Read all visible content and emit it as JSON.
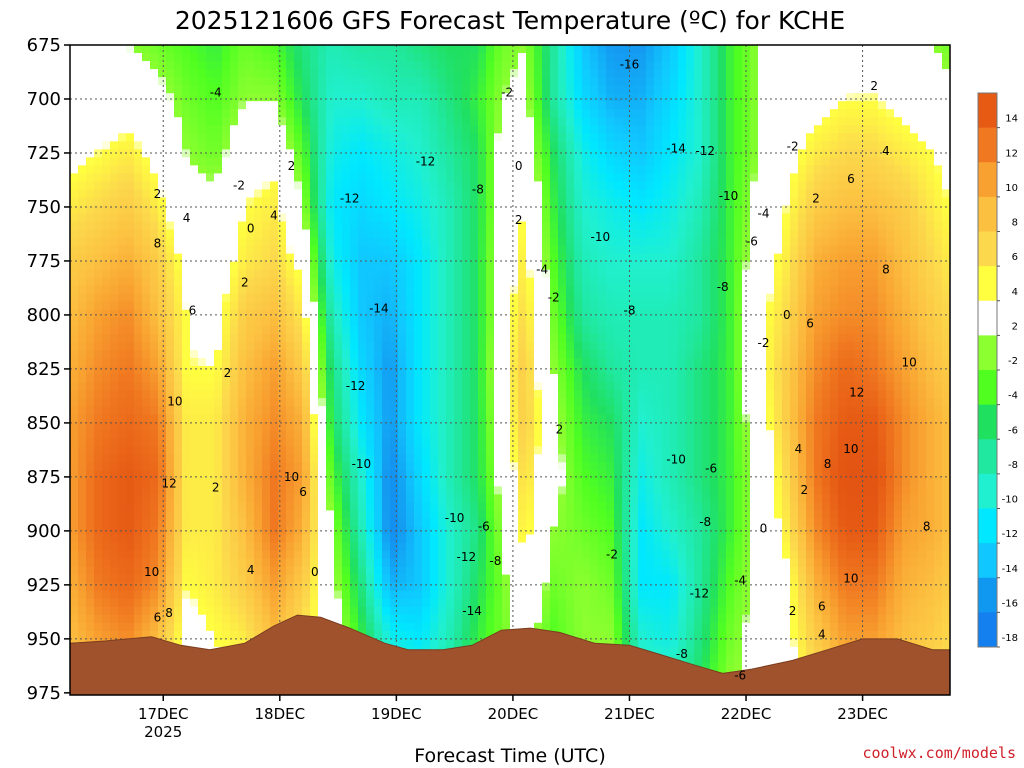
{
  "chart_data": {
    "type": "heatmap",
    "title": "2025121606 GFS Forecast Temperature (ºC) for KCHE",
    "xlabel": "Forecast Time (UTC)",
    "ylabel": "",
    "credit": "coolwx.com/models",
    "x_ticks": [
      {
        "label": "17DEC",
        "sub": "2025",
        "day": 17
      },
      {
        "label": "18DEC",
        "sub": "",
        "day": 18
      },
      {
        "label": "19DEC",
        "sub": "",
        "day": 19
      },
      {
        "label": "20DEC",
        "sub": "",
        "day": 20
      },
      {
        "label": "21DEC",
        "sub": "",
        "day": 21
      },
      {
        "label": "22DEC",
        "sub": "",
        "day": 22
      },
      {
        "label": "23DEC",
        "sub": "",
        "day": 23
      }
    ],
    "xlim": [
      16.2,
      23.75
    ],
    "y_ticks": [
      "675",
      "700",
      "725",
      "750",
      "775",
      "800",
      "825",
      "850",
      "875",
      "900",
      "925",
      "950",
      "975"
    ],
    "ylim": [
      675,
      976
    ],
    "grid": true,
    "legend": {
      "placement": "right",
      "labels": [
        "14",
        "12",
        "10",
        "8",
        "6",
        "4",
        "2",
        "-2",
        "-4",
        "-6",
        "-8",
        "-10",
        "-12",
        "-14",
        "-16",
        "-18"
      ],
      "colors": [
        "#e65a14",
        "#f07820",
        "#f8a030",
        "#fcc040",
        "#fcd84c",
        "#ffff40",
        "#ffffff",
        "#8cff30",
        "#50ff20",
        "#20e060",
        "#20e8a0",
        "#20f0d0",
        "#00e8ff",
        "#10c8ff",
        "#1098f0",
        "#1480f0"
      ]
    },
    "time_columns": [
      {
        "day": 16.2,
        "temps": [
          -2,
          0,
          1,
          3,
          5,
          6,
          7,
          8,
          8,
          8,
          7,
          6,
          4
        ]
      },
      {
        "day": 16.45,
        "temps": [
          -2,
          0,
          2,
          4,
          6,
          8,
          9,
          10,
          11,
          11,
          10,
          8,
          6
        ]
      },
      {
        "day": 16.7,
        "temps": [
          -2,
          0,
          3,
          5,
          7,
          9,
          10,
          11,
          12,
          12,
          11,
          9,
          6
        ]
      },
      {
        "day": 16.95,
        "temps": [
          -3,
          -1,
          1,
          3,
          5,
          6,
          8,
          10,
          11,
          10,
          9,
          6,
          3
        ]
      },
      {
        "day": 17.2,
        "temps": [
          -4,
          -3,
          -2,
          -1,
          1,
          2,
          2,
          3,
          3,
          3,
          2,
          1,
          0
        ]
      },
      {
        "day": 17.45,
        "temps": [
          -5,
          -4,
          -3,
          -1,
          0,
          1,
          2,
          3,
          3,
          3,
          3,
          2,
          1
        ]
      },
      {
        "day": 17.7,
        "temps": [
          -3,
          -2,
          0,
          2,
          3,
          5,
          6,
          7,
          7,
          6,
          5,
          3,
          2
        ]
      },
      {
        "day": 17.95,
        "temps": [
          -4,
          -2,
          1,
          3,
          4,
          6,
          8,
          9,
          10,
          10,
          8,
          6,
          3
        ]
      },
      {
        "day": 18.2,
        "temps": [
          -7,
          -6,
          -4,
          -2,
          1,
          3,
          5,
          7,
          8,
          7,
          5,
          3,
          1
        ]
      },
      {
        "day": 18.45,
        "temps": [
          -9,
          -10,
          -11,
          -12,
          -11,
          -9,
          -7,
          -6,
          -4,
          -2,
          -1,
          0,
          0
        ]
      },
      {
        "day": 18.7,
        "temps": [
          -8,
          -10,
          -12,
          -13,
          -14,
          -14,
          -13,
          -12,
          -10,
          -9,
          -7,
          -5,
          -3
        ]
      },
      {
        "day": 18.95,
        "temps": [
          -8,
          -9,
          -11,
          -12,
          -14,
          -15,
          -16,
          -16,
          -17,
          -17,
          -15,
          -11,
          -7
        ]
      },
      {
        "day": 19.2,
        "temps": [
          -7,
          -9,
          -10,
          -11,
          -12,
          -12,
          -12,
          -12,
          -13,
          -14,
          -14,
          -12,
          -9
        ]
      },
      {
        "day": 19.45,
        "temps": [
          -6,
          -7,
          -8,
          -9,
          -9,
          -9,
          -9,
          -9,
          -9,
          -10,
          -10,
          -9,
          -7
        ]
      },
      {
        "day": 19.7,
        "temps": [
          -6,
          -5,
          -6,
          -6,
          -6,
          -6,
          -6,
          -6,
          -6,
          -7,
          -6,
          -5,
          -4
        ]
      },
      {
        "day": 19.9,
        "temps": [
          -3,
          -2,
          -1,
          -1,
          0,
          0,
          1,
          0,
          -1,
          -2,
          -3,
          -3,
          -3
        ]
      },
      {
        "day": 20.1,
        "temps": [
          -2,
          -1,
          0,
          2,
          3,
          4,
          5,
          5,
          4,
          3,
          1,
          -1,
          -2
        ]
      },
      {
        "day": 20.35,
        "temps": [
          -8,
          -8,
          -6,
          -5,
          -4,
          -3,
          -2,
          -1,
          -1,
          -2,
          -3,
          -4,
          -4
        ]
      },
      {
        "day": 20.6,
        "temps": [
          -14,
          -13,
          -11,
          -10,
          -9,
          -8,
          -6,
          -5,
          -4,
          -3,
          -2,
          -2,
          -2
        ]
      },
      {
        "day": 20.85,
        "temps": [
          -16,
          -15,
          -13,
          -11,
          -10,
          -9,
          -8,
          -6,
          -5,
          -4,
          -3,
          -2,
          -2
        ]
      },
      {
        "day": 21.1,
        "temps": [
          -16,
          -15,
          -14,
          -12,
          -10,
          -9,
          -9,
          -10,
          -11,
          -12,
          -12,
          -10,
          -9
        ]
      },
      {
        "day": 21.35,
        "temps": [
          -14,
          -13,
          -12,
          -11,
          -10,
          -9,
          -9,
          -9,
          -9,
          -10,
          -12,
          -11,
          -8
        ]
      },
      {
        "day": 21.6,
        "temps": [
          -10,
          -10,
          -10,
          -9,
          -8,
          -8,
          -7,
          -7,
          -7,
          -8,
          -8,
          -7,
          -6
        ]
      },
      {
        "day": 21.85,
        "temps": [
          -5,
          -5,
          -5,
          -5,
          -5,
          -5,
          -5,
          -5,
          -5,
          -5,
          -4,
          -3,
          -2
        ]
      },
      {
        "day": 22.1,
        "temps": [
          -2,
          -2,
          -2,
          -1,
          0,
          1,
          1,
          0,
          -1,
          -1,
          -1,
          -1,
          -1
        ]
      },
      {
        "day": 22.35,
        "temps": [
          -1,
          0,
          1,
          2,
          3,
          4,
          5,
          5,
          4,
          3,
          1,
          1,
          1
        ]
      },
      {
        "day": 22.6,
        "temps": [
          0,
          1,
          3,
          5,
          7,
          8,
          9,
          10,
          10,
          9,
          7,
          5,
          3
        ]
      },
      {
        "day": 22.85,
        "temps": [
          0,
          2,
          4,
          6,
          8,
          9,
          11,
          12,
          13,
          12,
          10,
          8,
          5
        ]
      },
      {
        "day": 23.1,
        "temps": [
          1,
          2,
          4,
          6,
          8,
          9,
          10,
          12,
          13,
          12,
          10,
          8,
          5
        ]
      },
      {
        "day": 23.35,
        "temps": [
          0,
          1,
          3,
          5,
          6,
          7,
          8,
          9,
          9,
          8,
          7,
          6,
          4
        ]
      },
      {
        "day": 23.6,
        "temps": [
          -2,
          0,
          2,
          3,
          4,
          5,
          6,
          7,
          7,
          7,
          6,
          5,
          3
        ]
      },
      {
        "day": 23.75,
        "temps": [
          -3,
          -1,
          1,
          2,
          3,
          4,
          5,
          6,
          6,
          6,
          5,
          4,
          3
        ]
      }
    ],
    "terrain": {
      "description": "ground pressure (hPa)",
      "points": [
        {
          "day": 16.2,
          "hPa": 952
        },
        {
          "day": 16.5,
          "hPa": 951
        },
        {
          "day": 16.9,
          "hPa": 949
        },
        {
          "day": 17.15,
          "hPa": 953
        },
        {
          "day": 17.4,
          "hPa": 955
        },
        {
          "day": 17.7,
          "hPa": 952
        },
        {
          "day": 17.95,
          "hPa": 944
        },
        {
          "day": 18.15,
          "hPa": 939
        },
        {
          "day": 18.35,
          "hPa": 940
        },
        {
          "day": 18.6,
          "hPa": 945
        },
        {
          "day": 18.9,
          "hPa": 952
        },
        {
          "day": 19.1,
          "hPa": 955
        },
        {
          "day": 19.4,
          "hPa": 955
        },
        {
          "day": 19.65,
          "hPa": 953
        },
        {
          "day": 19.9,
          "hPa": 946
        },
        {
          "day": 20.15,
          "hPa": 945
        },
        {
          "day": 20.4,
          "hPa": 947
        },
        {
          "day": 20.7,
          "hPa": 952
        },
        {
          "day": 21.0,
          "hPa": 953
        },
        {
          "day": 21.25,
          "hPa": 957
        },
        {
          "day": 21.55,
          "hPa": 962
        },
        {
          "day": 21.8,
          "hPa": 966
        },
        {
          "day": 22.05,
          "hPa": 964
        },
        {
          "day": 22.4,
          "hPa": 960
        },
        {
          "day": 22.7,
          "hPa": 955
        },
        {
          "day": 23.0,
          "hPa": 950
        },
        {
          "day": 23.3,
          "hPa": 950
        },
        {
          "day": 23.6,
          "hPa": 955
        },
        {
          "day": 23.75,
          "hPa": 955
        }
      ]
    },
    "contour_labels": [
      {
        "text": "-4",
        "day": 17.45,
        "hPa": 697
      },
      {
        "text": "-2",
        "day": 17.65,
        "hPa": 740
      },
      {
        "text": "2",
        "day": 18.1,
        "hPa": 731
      },
      {
        "text": "0",
        "day": 17.75,
        "hPa": 760
      },
      {
        "text": "4",
        "day": 17.95,
        "hPa": 754
      },
      {
        "text": "2",
        "day": 16.95,
        "hPa": 744
      },
      {
        "text": "4",
        "day": 17.2,
        "hPa": 755
      },
      {
        "text": "8",
        "day": 16.95,
        "hPa": 767
      },
      {
        "text": "6",
        "day": 17.25,
        "hPa": 798
      },
      {
        "text": "2",
        "day": 17.55,
        "hPa": 827
      },
      {
        "text": "10",
        "day": 17.1,
        "hPa": 840
      },
      {
        "text": "12",
        "day": 17.05,
        "hPa": 878
      },
      {
        "text": "2",
        "day": 17.45,
        "hPa": 880
      },
      {
        "text": "10",
        "day": 16.9,
        "hPa": 919
      },
      {
        "text": "8",
        "day": 17.05,
        "hPa": 938
      },
      {
        "text": "6",
        "day": 16.95,
        "hPa": 940
      },
      {
        "text": "4",
        "day": 17.75,
        "hPa": 918
      },
      {
        "text": "2",
        "day": 17.7,
        "hPa": 785
      },
      {
        "text": "10",
        "day": 18.1,
        "hPa": 875
      },
      {
        "text": "6",
        "day": 18.2,
        "hPa": 882
      },
      {
        "text": "0",
        "day": 18.3,
        "hPa": 919
      },
      {
        "text": "-12",
        "day": 18.6,
        "hPa": 746
      },
      {
        "text": "-14",
        "day": 18.85,
        "hPa": 797
      },
      {
        "text": "-12",
        "day": 18.65,
        "hPa": 833
      },
      {
        "text": "-10",
        "day": 18.7,
        "hPa": 869
      },
      {
        "text": "-12",
        "day": 19.25,
        "hPa": 729
      },
      {
        "text": "-8",
        "day": 19.7,
        "hPa": 742
      },
      {
        "text": "-10",
        "day": 19.5,
        "hPa": 894
      },
      {
        "text": "-6",
        "day": 19.75,
        "hPa": 898
      },
      {
        "text": "-12",
        "day": 19.6,
        "hPa": 912
      },
      {
        "text": "-8",
        "day": 19.85,
        "hPa": 914
      },
      {
        "text": "-14",
        "day": 19.65,
        "hPa": 937
      },
      {
        "text": "-2",
        "day": 19.95,
        "hPa": 697
      },
      {
        "text": "0",
        "day": 20.05,
        "hPa": 731
      },
      {
        "text": "2",
        "day": 20.05,
        "hPa": 756
      },
      {
        "text": "-4",
        "day": 20.25,
        "hPa": 779
      },
      {
        "text": "-2",
        "day": 20.35,
        "hPa": 792
      },
      {
        "text": "2",
        "day": 20.4,
        "hPa": 853
      },
      {
        "text": "-16",
        "day": 21.0,
        "hPa": 684
      },
      {
        "text": "-14",
        "day": 21.4,
        "hPa": 723
      },
      {
        "text": "-12",
        "day": 21.65,
        "hPa": 724
      },
      {
        "text": "-10",
        "day": 20.75,
        "hPa": 764
      },
      {
        "text": "-10",
        "day": 21.85,
        "hPa": 745
      },
      {
        "text": "-8",
        "day": 21.0,
        "hPa": 798
      },
      {
        "text": "-8",
        "day": 21.8,
        "hPa": 787
      },
      {
        "text": "-6",
        "day": 22.05,
        "hPa": 766
      },
      {
        "text": "-4",
        "day": 22.15,
        "hPa": 753
      },
      {
        "text": "-2",
        "day": 22.4,
        "hPa": 722
      },
      {
        "text": "2",
        "day": 22.6,
        "hPa": 746
      },
      {
        "text": "-10",
        "day": 21.4,
        "hPa": 867
      },
      {
        "text": "-6",
        "day": 21.7,
        "hPa": 871
      },
      {
        "text": "-8",
        "day": 21.65,
        "hPa": 896
      },
      {
        "text": "-2",
        "day": 20.85,
        "hPa": 911
      },
      {
        "text": "-4",
        "day": 21.95,
        "hPa": 923
      },
      {
        "text": "-12",
        "day": 21.6,
        "hPa": 929
      },
      {
        "text": "2",
        "day": 22.4,
        "hPa": 937
      },
      {
        "text": "0",
        "day": 22.15,
        "hPa": 899
      },
      {
        "text": "-2",
        "day": 22.15,
        "hPa": 813
      },
      {
        "text": "0",
        "day": 22.35,
        "hPa": 800
      },
      {
        "text": "-8",
        "day": 21.45,
        "hPa": 957
      },
      {
        "text": "-6",
        "day": 21.95,
        "hPa": 967
      },
      {
        "text": "2",
        "day": 23.1,
        "hPa": 694
      },
      {
        "text": "4",
        "day": 23.2,
        "hPa": 724
      },
      {
        "text": "6",
        "day": 22.9,
        "hPa": 737
      },
      {
        "text": "8",
        "day": 23.2,
        "hPa": 779
      },
      {
        "text": "6",
        "day": 22.55,
        "hPa": 804
      },
      {
        "text": "12",
        "day": 22.95,
        "hPa": 836
      },
      {
        "text": "10",
        "day": 23.4,
        "hPa": 822
      },
      {
        "text": "4",
        "day": 22.45,
        "hPa": 862
      },
      {
        "text": "10",
        "day": 22.9,
        "hPa": 862
      },
      {
        "text": "8",
        "day": 22.7,
        "hPa": 869
      },
      {
        "text": "2",
        "day": 22.5,
        "hPa": 881
      },
      {
        "text": "8",
        "day": 23.55,
        "hPa": 898
      },
      {
        "text": "10",
        "day": 22.9,
        "hPa": 922
      },
      {
        "text": "6",
        "day": 22.65,
        "hPa": 935
      },
      {
        "text": "4",
        "day": 22.65,
        "hPa": 948
      }
    ]
  }
}
